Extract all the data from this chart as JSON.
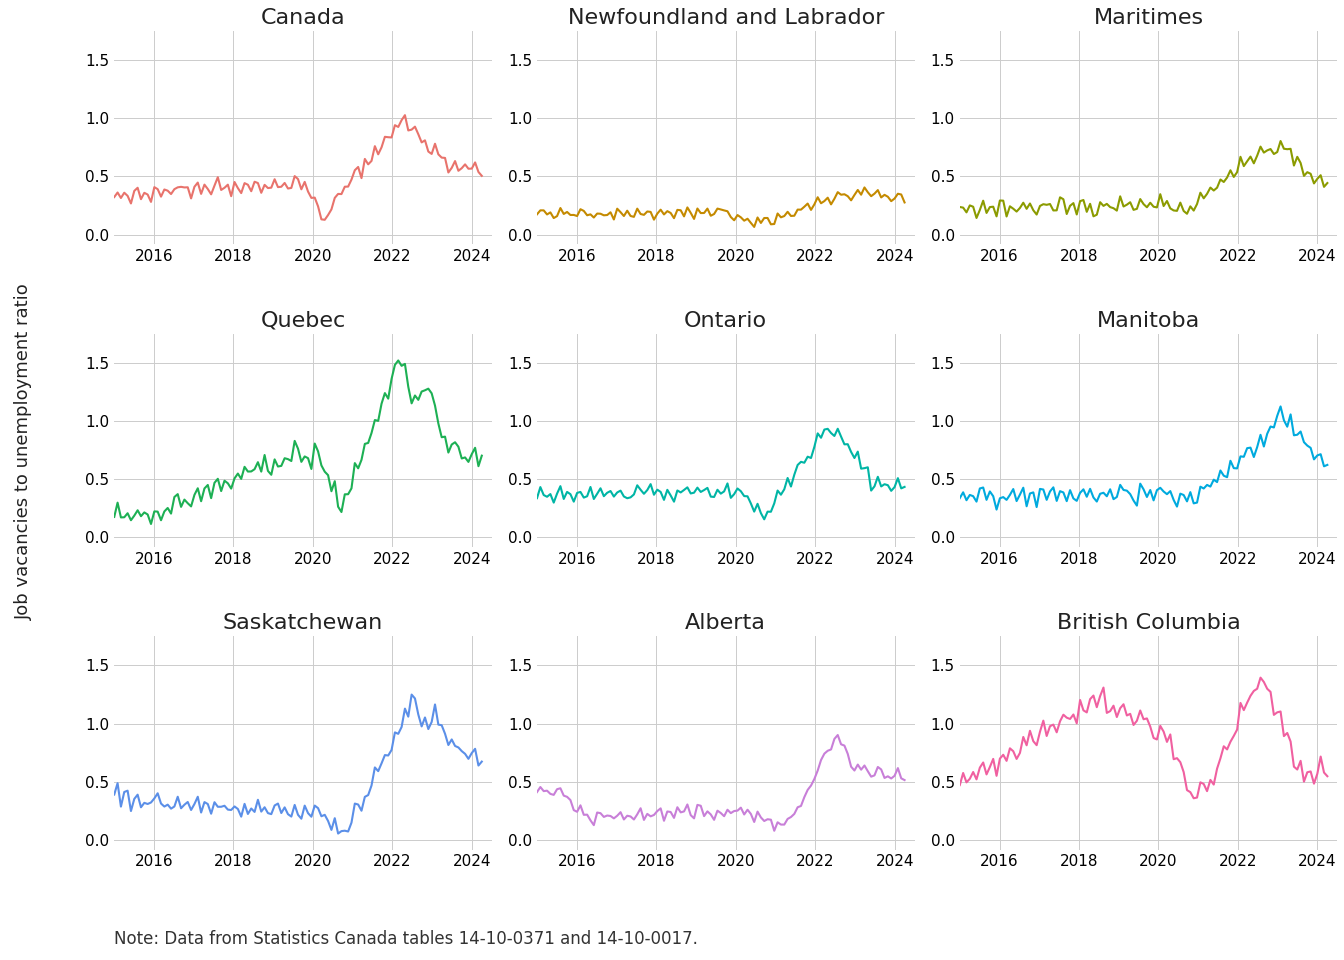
{
  "panels": [
    {
      "title": "Canada",
      "color": "#E8736C"
    },
    {
      "title": "Newfoundland and Labrador",
      "color": "#C48A00"
    },
    {
      "title": "Maritimes",
      "color": "#8B9B00"
    },
    {
      "title": "Quebec",
      "color": "#1DB054"
    },
    {
      "title": "Ontario",
      "color": "#00B5A5"
    },
    {
      "title": "Manitoba",
      "color": "#00AADE"
    },
    {
      "title": "Saskatchewan",
      "color": "#5B8FE8"
    },
    {
      "title": "Alberta",
      "color": "#C87FD8"
    },
    {
      "title": "British Columbia",
      "color": "#F060A0"
    }
  ],
  "ylabel": "Job vacancies to unemployment ratio",
  "note": "Note: Data from Statistics Canada tables 14-10-0371 and 14-10-0017.",
  "ylim": [
    -0.08,
    1.75
  ],
  "yticks": [
    0.0,
    0.5,
    1.0,
    1.5
  ],
  "title_fontsize": 16,
  "label_fontsize": 13,
  "note_fontsize": 12,
  "background_color": "#FFFFFF",
  "grid_color": "#CCCCCC",
  "line_width": 1.5
}
